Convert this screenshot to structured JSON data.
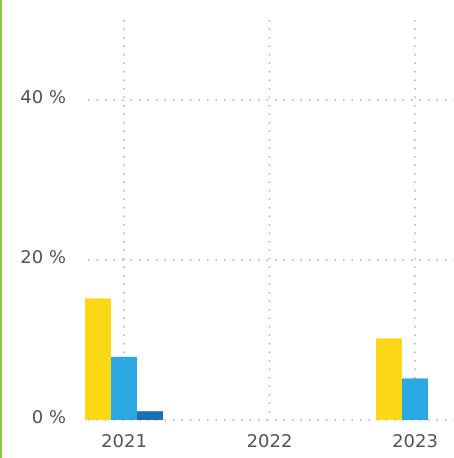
{
  "chart_data": {
    "type": "bar",
    "categories": [
      "2021",
      "2022",
      "2023"
    ],
    "series": [
      {
        "color": "#fdd817",
        "values": [
          15.2,
          null,
          10.2
        ]
      },
      {
        "color": "#2ba8e0",
        "values": [
          7.9,
          null,
          5.2
        ]
      },
      {
        "color": "#1a6fb8",
        "values": [
          1.1,
          null,
          null
        ]
      }
    ],
    "ylim": [
      0,
      50
    ],
    "yticks": [
      {
        "value": 0,
        "label": "0 %"
      },
      {
        "value": 20,
        "label": "20 %"
      },
      {
        "value": 40,
        "label": "40 %"
      }
    ],
    "grid": true
  }
}
